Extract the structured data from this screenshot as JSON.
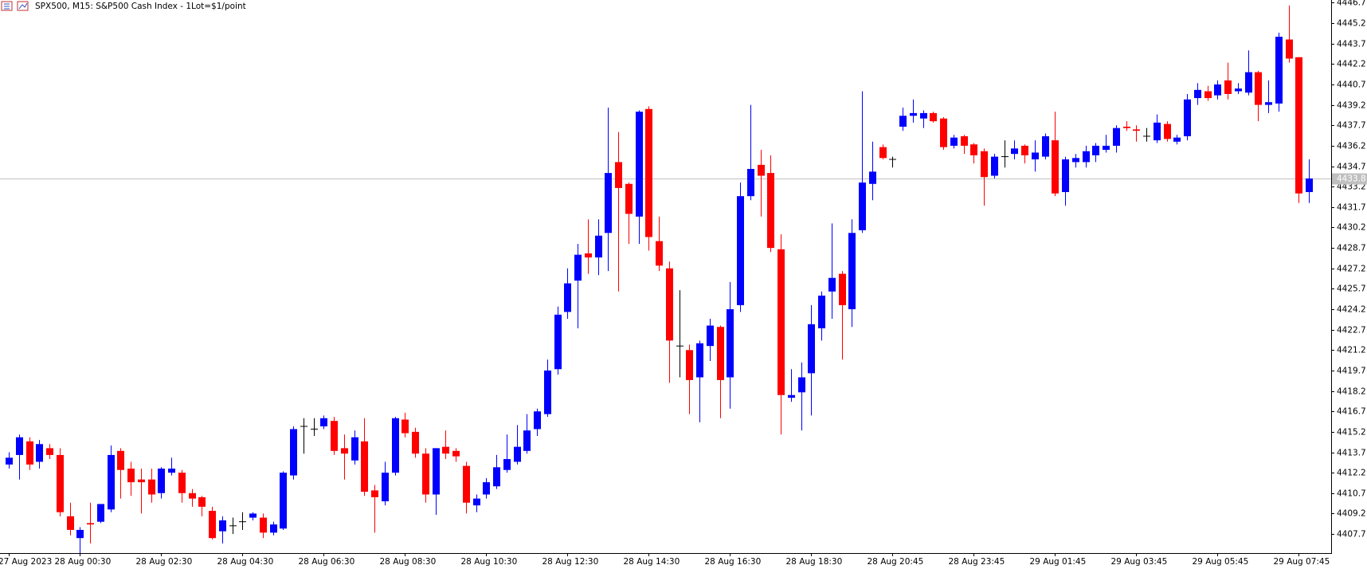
{
  "chart_data": {
    "type": "candlestick",
    "title": "SPX500, M15:  S&P500 Cash Index - 1Lot=$1/point",
    "up_color": "#0000ff",
    "down_color": "#ff0000",
    "doji_color": "#000000",
    "last_price": 4433.8,
    "categories": [
      "27 Aug 2023",
      null,
      null,
      null,
      null,
      null,
      null,
      "28 Aug 00:30",
      null,
      null,
      null,
      null,
      null,
      null,
      null,
      "28 Aug 02:30",
      null,
      null,
      null,
      null,
      null,
      null,
      null,
      "28 Aug 04:30",
      null,
      null,
      null,
      null,
      null,
      null,
      null,
      "28 Aug 06:30",
      null,
      null,
      null,
      null,
      null,
      null,
      null,
      "28 Aug 08:30",
      null,
      null,
      null,
      null,
      null,
      null,
      null,
      "28 Aug 10:30",
      null,
      null,
      null,
      null,
      null,
      null,
      null,
      "28 Aug 12:30",
      null,
      null,
      null,
      null,
      null,
      null,
      null,
      "28 Aug 14:30",
      null,
      null,
      null,
      null,
      null,
      null,
      null,
      "28 Aug 16:30",
      null,
      null,
      null,
      null,
      null,
      null,
      null,
      "28 Aug 18:30",
      null,
      null,
      null,
      null,
      null,
      null,
      null,
      "28 Aug 20:45",
      null,
      null,
      null,
      null,
      null,
      null,
      null,
      "28 Aug 23:45",
      null,
      null,
      null,
      null,
      null,
      null,
      null,
      "29 Aug 01:45",
      null,
      null,
      null,
      null,
      null,
      null,
      null,
      "29 Aug 03:45",
      null,
      null,
      null,
      null,
      null,
      null,
      null,
      "29 Aug 05:45",
      null,
      null,
      null,
      null,
      null,
      null,
      null,
      "29 Aug 07:45",
      null
    ],
    "open": [
      4412.8,
      4413.5,
      4414.5,
      4413.0,
      4414.0,
      4413.5,
      4409.0,
      4407.4,
      4408.5,
      4408.6,
      4409.5,
      4413.8,
      4412.5,
      4411.7,
      4411.7,
      4410.7,
      4412.2,
      4412.2,
      4410.7,
      4410.4,
      4409.4,
      4407.9,
      4408.3,
      4408.6,
      4408.9,
      4408.9,
      4407.8,
      4408.1,
      4412.0,
      4415.6,
      4415.4,
      4415.6,
      4416.0,
      4414.0,
      4413.1,
      4414.5,
      4410.9,
      4410.1,
      4412.2,
      4416.1,
      4415.2,
      4413.6,
      4410.6,
      4414.1,
      4413.8,
      4412.7,
      4409.8,
      4410.6,
      4411.2,
      4412.4,
      4413.0,
      4413.8,
      4415.4,
      4416.5,
      4419.8,
      4424.0,
      4426.3,
      4428.3,
      4428.0,
      4429.8,
      4435.0,
      4433.4,
      4431.0,
      4438.9,
      4429.2,
      4427.2,
      4421.5,
      4421.2,
      4419.2,
      4421.5,
      4422.9,
      4419.2,
      4424.5,
      4432.5,
      4434.8,
      4434.2,
      4428.6,
      4417.7,
      4418.1,
      4419.5,
      4422.8,
      4425.5,
      4426.8,
      4424.2,
      4430.0,
      4433.4,
      4436.1,
      4435.2,
      4437.6,
      4438.4,
      4438.2,
      4438.6,
      4438.2,
      4436.2,
      4436.9,
      4436.3,
      4435.8,
      4434.0,
      4435.4,
      4435.6,
      4436.2,
      4435.2,
      4435.4,
      4436.6,
      4432.8,
      4435.0,
      4435.0,
      4435.5,
      4435.9,
      4436.2,
      4437.6,
      4437.4,
      4436.9,
      4436.6,
      4437.8,
      4436.5,
      4436.9,
      4439.7,
      4440.2,
      4439.9,
      4441.0,
      4440.2,
      4440.1,
      4441.6,
      4439.2,
      4439.3,
      4444.0,
      4442.7,
      4432.8
    ],
    "high": [
      4413.7,
      4415.0,
      4414.8,
      4414.6,
      4414.3,
      4414.0,
      4410.0,
      4408.2,
      4410.0,
      4409.9,
      4414.2,
      4414.0,
      4413.0,
      4412.5,
      4412.5,
      4412.6,
      4413.3,
      4412.4,
      4411.0,
      4410.5,
      4409.7,
      4409.0,
      4408.9,
      4409.3,
      4409.3,
      4409.2,
      4408.6,
      4412.3,
      4415.6,
      4416.2,
      4416.2,
      4416.4,
      4416.3,
      4415.0,
      4415.3,
      4416.2,
      4411.3,
      4413.0,
      4416.3,
      4416.6,
      4415.5,
      4414.0,
      4414.0,
      4415.3,
      4414.0,
      4413.0,
      4410.6,
      4411.8,
      4413.5,
      4415.0,
      4415.7,
      4416.5,
      4416.9,
      4420.5,
      4424.4,
      4427.2,
      4429.0,
      4430.8,
      4430.8,
      4439.0,
      4437.2,
      4433.5,
      4438.8,
      4439.1,
      4431.0,
      4427.7,
      4425.6,
      4421.6,
      4421.9,
      4423.5,
      4423.0,
      4426.2,
      4433.5,
      4439.2,
      4435.9,
      4435.5,
      4429.7,
      4419.8,
      4420.3,
      4424.5,
      4425.5,
      4430.5,
      4427.0,
      4430.8,
      4440.2,
      4436.5,
      4436.3,
      4435.4,
      4439.0,
      4439.6,
      4438.8,
      4438.7,
      4438.3,
      4437.0,
      4437.0,
      4436.4,
      4436.0,
      4435.6,
      4436.6,
      4436.6,
      4436.3,
      4436.6,
      4437.1,
      4438.7,
      4435.4,
      4435.6,
      4436.2,
      4436.4,
      4437.0,
      4437.7,
      4438.0,
      4437.7,
      4437.5,
      4438.5,
      4438.0,
      4437.0,
      4440.0,
      4440.8,
      4440.6,
      4441.0,
      4442.3,
      4440.8,
      4443.2,
      4441.7,
      4441.0,
      4444.5,
      4446.5,
      4442.7,
      4435.2
    ],
    "low": [
      4412.5,
      4411.7,
      4412.4,
      4412.5,
      4413.2,
      4409.0,
      4407.6,
      4406.3,
      4407.0,
      4408.5,
      4409.3,
      4410.3,
      4410.5,
      4409.2,
      4410.0,
      4410.3,
      4412.0,
      4410.0,
      4409.7,
      4409.0,
      4407.3,
      4407.0,
      4407.7,
      4408.0,
      4408.7,
      4407.4,
      4407.6,
      4408.0,
      4411.7,
      4413.6,
      4414.9,
      4415.4,
      4413.5,
      4411.7,
      4412.8,
      4410.5,
      4407.8,
      4409.8,
      4412.0,
      4414.8,
      4413.3,
      4410.0,
      4409.1,
      4413.2,
      4413.0,
      4409.2,
      4409.3,
      4410.3,
      4411.0,
      4412.2,
      4412.8,
      4413.6,
      4414.9,
      4416.3,
      4419.4,
      4423.5,
      4422.8,
      4426.8,
      4426.7,
      4427.0,
      4425.5,
      4429.0,
      4429.0,
      4428.5,
      4427.0,
      4418.8,
      4419.2,
      4416.5,
      4415.9,
      4420.4,
      4416.2,
      4416.9,
      4424.0,
      4432.2,
      4431.0,
      4428.4,
      4415.0,
      4417.4,
      4415.3,
      4416.4,
      4421.9,
      4423.5,
      4420.5,
      4422.9,
      4429.8,
      4432.2,
      4435.2,
      4434.6,
      4437.3,
      4437.9,
      4437.5,
      4437.9,
      4435.9,
      4436.0,
      4435.6,
      4434.9,
      4431.8,
      4433.8,
      4434.6,
      4435.2,
      4434.9,
      4434.3,
      4435.2,
      4432.5,
      4431.8,
      4434.6,
      4434.6,
      4435.0,
      4435.7,
      4435.7,
      4437.3,
      4436.5,
      4436.5,
      4436.4,
      4436.5,
      4436.3,
      4436.6,
      4439.2,
      4439.5,
      4439.6,
      4439.6,
      4440.0,
      4439.9,
      4438.0,
      4438.6,
      4438.7,
      4442.3,
      4432.0,
      4432.0
    ],
    "close": [
      4413.3,
      4414.8,
      4412.8,
      4414.3,
      4413.5,
      4409.3,
      4408.0,
      4408.0,
      4408.4,
      4409.9,
      4413.5,
      4412.4,
      4411.5,
      4411.5,
      4410.6,
      4412.5,
      4412.5,
      4410.7,
      4410.3,
      4409.7,
      4407.4,
      4408.7,
      4408.3,
      4408.6,
      4409.2,
      4407.8,
      4408.4,
      4412.2,
      4415.4,
      4415.6,
      4415.4,
      4416.2,
      4413.8,
      4413.6,
      4414.8,
      4410.8,
      4410.4,
      4412.2,
      4416.2,
      4415.1,
      4413.6,
      4410.6,
      4414.0,
      4413.6,
      4413.4,
      4410.0,
      4410.3,
      4411.5,
      4412.6,
      4413.2,
      4414.1,
      4415.3,
      4416.7,
      4419.7,
      4423.8,
      4426.1,
      4428.2,
      4428.0,
      4429.6,
      4434.2,
      4433.1,
      4431.2,
      4438.7,
      4429.5,
      4427.4,
      4421.9,
      4421.5,
      4419.0,
      4421.7,
      4423.0,
      4419.0,
      4424.2,
      4432.5,
      4434.5,
      4434.0,
      4428.7,
      4417.9,
      4417.9,
      4419.2,
      4423.1,
      4425.2,
      4426.5,
      4424.5,
      4429.8,
      4433.5,
      4434.3,
      4435.3,
      4435.2,
      4438.4,
      4438.6,
      4438.6,
      4438.0,
      4436.1,
      4436.8,
      4436.2,
      4435.5,
      4433.9,
      4435.4,
      4435.4,
      4436.0,
      4435.5,
      4435.7,
      4436.9,
      4432.7,
      4435.2,
      4435.3,
      4435.8,
      4436.2,
      4436.2,
      4437.5,
      4437.5,
      4437.3,
      4436.9,
      4437.9,
      4436.7,
      4436.8,
      4439.6,
      4440.3,
      4439.7,
      4440.7,
      4440.0,
      4440.4,
      4441.6,
      4439.2,
      4439.4,
      4444.2,
      4442.6,
      4432.7,
      4433.8
    ],
    "ylim": [
      4406.3,
      4446.9
    ],
    "yticks": [
      4407.7,
      4409.2,
      4410.7,
      4412.2,
      4413.7,
      4415.2,
      4416.7,
      4418.2,
      4419.7,
      4421.2,
      4422.7,
      4424.2,
      4425.7,
      4427.2,
      4428.7,
      4430.2,
      4431.7,
      4433.2,
      4434.7,
      4436.2,
      4437.7,
      4439.2,
      4440.7,
      4442.2,
      4443.7,
      4445.2,
      4446.7
    ]
  }
}
